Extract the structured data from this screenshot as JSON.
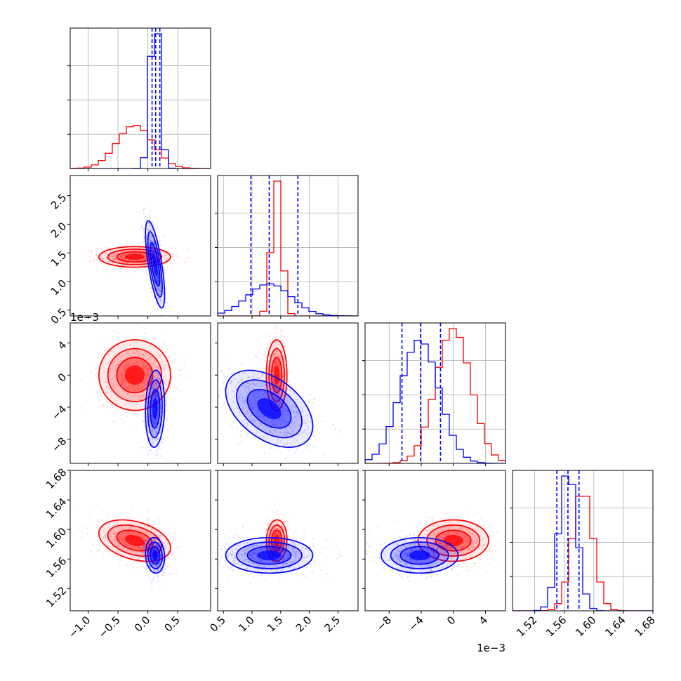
{
  "chart_data": {
    "type": "corner",
    "parameters": [
      {
        "id": "p1",
        "range": [
          -1.3,
          1.05
        ],
        "ticks": [
          -1.0,
          -0.5,
          0.0,
          0.5
        ],
        "tick_labels": [
          "−1.0",
          "−0.5",
          "0.0",
          "0.5"
        ],
        "offset_label": ""
      },
      {
        "id": "p2",
        "range": [
          0.4,
          2.85
        ],
        "ticks": [
          0.5,
          1.0,
          1.5,
          2.0,
          2.5
        ],
        "tick_labels": [
          "0.5",
          "1.0",
          "1.5",
          "2.0",
          "2.5"
        ],
        "offset_label": ""
      },
      {
        "id": "p3",
        "range": [
          -11,
          6.5
        ],
        "ticks": [
          -8,
          -4,
          0,
          4
        ],
        "tick_labels": [
          "−8",
          "−4",
          "0",
          "4"
        ],
        "offset_label": "1e−3"
      },
      {
        "id": "p4",
        "range": [
          1.49,
          1.68
        ],
        "ticks": [
          1.52,
          1.56,
          1.6,
          1.64,
          1.68
        ],
        "tick_labels": [
          "1.52",
          "1.56",
          "1.60",
          "1.64",
          "1.68"
        ],
        "offset_label": ""
      }
    ],
    "series": [
      {
        "color": "#ff0000",
        "mean": [
          -0.22,
          1.43,
          0.0,
          1.585
        ],
        "sd": [
          0.3,
          0.09,
          2.2,
          0.014
        ],
        "corr": {
          "0-1": 0.0,
          "0-2": 0.0,
          "0-3": -0.35,
          "1-2": 0.0,
          "1-3": 0.05,
          "2-3": 0.0
        }
      },
      {
        "color": "#0000ff",
        "mean": [
          0.12,
          1.3,
          -4.2,
          1.565
        ],
        "sd": [
          0.08,
          0.38,
          2.4,
          0.012
        ],
        "corr": {
          "0-1": -0.7,
          "0-2": 0.1,
          "0-3": -0.1,
          "1-2": -0.45,
          "1-3": 0.0,
          "2-3": 0.0
        }
      }
    ],
    "quantile_lines": {
      "color": "#0000ff",
      "values": [
        [
          0.07,
          0.13,
          0.2
        ],
        [
          0.98,
          1.3,
          1.8
        ],
        [
          -6.4,
          -4.1,
          -1.6
        ],
        [
          1.55,
          1.565,
          1.58
        ]
      ]
    },
    "grid": true
  }
}
